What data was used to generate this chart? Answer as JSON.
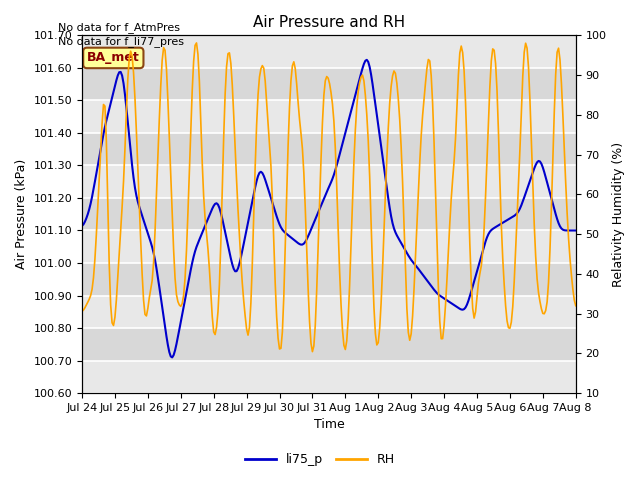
{
  "title": "Air Pressure and RH",
  "xlabel": "Time",
  "ylabel_left": "Air Pressure (kPa)",
  "ylabel_right": "Relativity Humidity (%)",
  "annotation_line1": "No data for f_AtmPres",
  "annotation_line2": "No data for f_li77_pres",
  "box_label": "BA_met",
  "legend_labels": [
    "li75_p",
    "RH"
  ],
  "line_colors": [
    "#0000CC",
    "#FFA500"
  ],
  "xlim_start": 0,
  "xlim_end": 345,
  "ylim_left": [
    100.6,
    101.7
  ],
  "ylim_right": [
    10,
    100
  ],
  "yticks_left": [
    100.6,
    100.7,
    100.8,
    100.9,
    101.0,
    101.1,
    101.2,
    101.3,
    101.4,
    101.5,
    101.6,
    101.7
  ],
  "yticks_right": [
    10,
    20,
    30,
    40,
    50,
    60,
    70,
    80,
    90,
    100
  ],
  "xtick_labels": [
    "Jul 24",
    "Jul 25",
    "Jul 26",
    "Jul 27",
    "Jul 28",
    "Jul 29",
    "Jul 30",
    "Jul 31",
    "Aug 1",
    "Aug 2",
    "Aug 3",
    "Aug 4",
    "Aug 5",
    "Aug 6",
    "Aug 7",
    "Aug 8"
  ],
  "xtick_positions": [
    0,
    23,
    46,
    69,
    92,
    115,
    138,
    161,
    184,
    207,
    230,
    253,
    276,
    299,
    322,
    345
  ],
  "plot_bg_color": "#d8d8d8",
  "fig_bg_color": "#ffffff"
}
